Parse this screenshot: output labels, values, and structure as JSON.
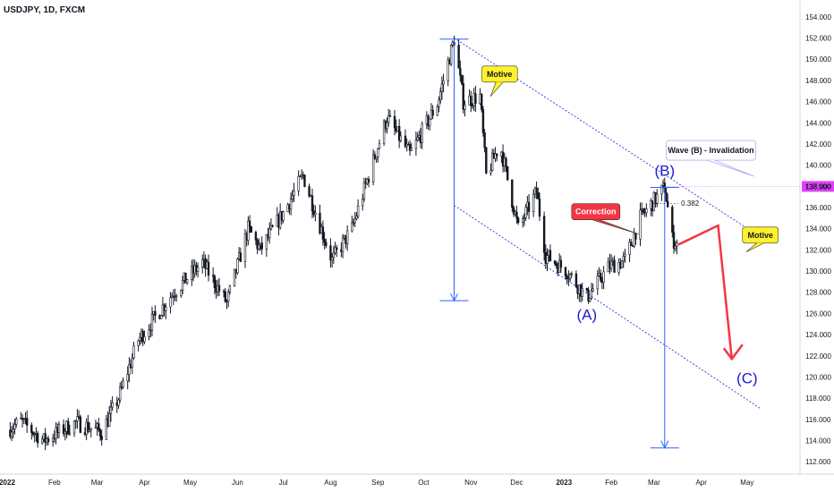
{
  "chart_data": {
    "type": "candlestick",
    "title": "USDJPY, 1D, FXCM",
    "ylim": [
      111,
      155
    ],
    "y_ticks": [
      "112.000",
      "114.000",
      "116.000",
      "118.000",
      "120.000",
      "122.000",
      "124.000",
      "126.000",
      "128.000",
      "130.000",
      "132.000",
      "134.000",
      "136.000",
      "138.000",
      "140.000",
      "142.000",
      "144.000",
      "146.000",
      "148.000",
      "150.000",
      "152.000",
      "154.000"
    ],
    "x_ticks": [
      "2022",
      "Feb",
      "Mar",
      "Apr",
      "May",
      "Jun",
      "Jul",
      "Aug",
      "Sep",
      "Oct",
      "Nov",
      "Dec",
      "2023",
      "Feb",
      "Mar",
      "Apr",
      "May"
    ],
    "price_path": [
      [
        "2022-01-01",
        115.0
      ],
      [
        "2022-01-10",
        115.8
      ],
      [
        "2022-01-25",
        114.0
      ],
      [
        "2022-02-15",
        115.7
      ],
      [
        "2022-03-04",
        114.8
      ],
      [
        "2022-03-15",
        118.0
      ],
      [
        "2022-03-28",
        123.5
      ],
      [
        "2022-04-20",
        128.0
      ],
      [
        "2022-05-09",
        130.8
      ],
      [
        "2022-05-25",
        127.0
      ],
      [
        "2022-06-08",
        134.0
      ],
      [
        "2022-06-16",
        132.0
      ],
      [
        "2022-07-01",
        135.5
      ],
      [
        "2022-07-14",
        139.0
      ],
      [
        "2022-08-02",
        131.0
      ],
      [
        "2022-08-15",
        134.0
      ],
      [
        "2022-09-07",
        144.5
      ],
      [
        "2022-09-22",
        141.0
      ],
      [
        "2022-10-10",
        145.8
      ],
      [
        "2022-10-21",
        151.9
      ],
      [
        "2022-10-27",
        146.0
      ],
      [
        "2022-11-07",
        146.5
      ],
      [
        "2022-11-11",
        139.0
      ],
      [
        "2022-11-20",
        142.0
      ],
      [
        "2022-12-02",
        134.0
      ],
      [
        "2022-12-14",
        137.5
      ],
      [
        "2022-12-20",
        131.5
      ],
      [
        "2023-01-03",
        130.0
      ],
      [
        "2023-01-16",
        127.5
      ],
      [
        "2023-01-31",
        130.5
      ],
      [
        "2023-02-10",
        131.0
      ],
      [
        "2023-02-20",
        135.0
      ],
      [
        "2023-03-08",
        137.9
      ],
      [
        "2023-03-13",
        133.0
      ],
      [
        "2023-03-17",
        132.5
      ]
    ],
    "last_price_label": "137.990",
    "last_price_line": 137.99,
    "fib_label": "0.382",
    "fib_level": 136.4,
    "wave_labels": [
      {
        "text": "(A)",
        "date": "2023-01-16",
        "price": 125.4
      },
      {
        "text": "(B)",
        "date": "2023-03-08",
        "price": 139.0
      },
      {
        "text": "(C)",
        "date": "2023-05-01",
        "price": 119.4
      }
    ],
    "callouts": [
      {
        "text": "Motive",
        "style": "yellow"
      },
      {
        "text": "Correction",
        "style": "red"
      },
      {
        "text": "Motive",
        "style": "yellow"
      },
      {
        "text": "Wave (B) -  Invalidation",
        "style": "white"
      }
    ],
    "measurements": [
      {
        "date": "2022-10-21",
        "from": 151.9,
        "to": 127.2
      },
      {
        "date": "2023-03-08",
        "from": 137.9,
        "to": 113.3
      }
    ],
    "channel": {
      "upper": [
        [
          "2022-10-21",
          152.0
        ],
        [
          "2023-05-10",
          133.2
        ]
      ],
      "lower": [
        [
          "2022-10-21",
          136.2
        ],
        [
          "2023-05-10",
          117.0
        ]
      ]
    },
    "projection": [
      [
        "2023-03-17",
        132.5
      ],
      [
        "2023-04-12",
        134.3
      ],
      [
        "2023-04-21",
        121.7
      ]
    ],
    "colors": {
      "up": "#131722",
      "down": "#131722",
      "channel": "#1b1bd1",
      "measure": "#2962ff",
      "projection": "#f23645",
      "price_tag": "#e040fb"
    }
  }
}
